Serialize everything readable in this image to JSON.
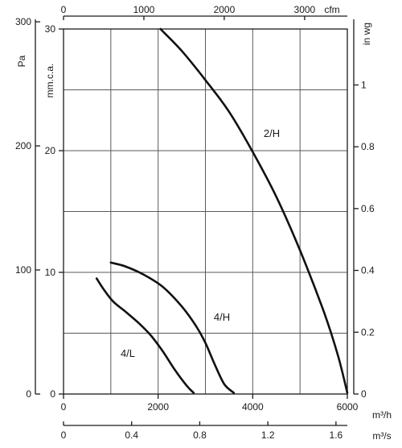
{
  "chart_data": {
    "type": "line",
    "axes": {
      "pa": {
        "label": "Pa",
        "ticks": [
          {
            "v": 0,
            "t": "0"
          },
          {
            "v": 100,
            "t": "100"
          },
          {
            "v": 200,
            "t": "200"
          },
          {
            "v": 300,
            "t": "300"
          }
        ]
      },
      "mmca": {
        "label": "mm.c.a.",
        "ticks": [
          {
            "v": 0,
            "t": "0"
          },
          {
            "v": 10,
            "t": "10"
          },
          {
            "v": 20,
            "t": "20"
          },
          {
            "v": 30,
            "t": "30"
          }
        ]
      },
      "inwg": {
        "label": "in wg",
        "ticks": [
          {
            "v": 0,
            "t": "0"
          },
          {
            "v": 0.2,
            "t": "0.2"
          },
          {
            "v": 0.4,
            "t": "0.4"
          },
          {
            "v": 0.6,
            "t": "0.6"
          },
          {
            "v": 0.8,
            "t": "0.8"
          },
          {
            "v": 1,
            "t": "1"
          }
        ]
      },
      "cfm": {
        "label": "cfm",
        "ticks": [
          {
            "v": 0,
            "t": "0"
          },
          {
            "v": 1000,
            "t": "1000"
          },
          {
            "v": 2000,
            "t": "2000"
          },
          {
            "v": 3000,
            "t": "3000"
          }
        ]
      },
      "m3h": {
        "label": "m³/h",
        "ticks": [
          {
            "v": 0,
            "t": "0"
          },
          {
            "v": 2000,
            "t": "2000"
          },
          {
            "v": 4000,
            "t": "4000"
          },
          {
            "v": 6000,
            "t": "6000"
          }
        ]
      },
      "m3s": {
        "label": "m³/s",
        "ticks": [
          {
            "v": 0,
            "t": "0"
          },
          {
            "v": 0.4,
            "t": "0.4"
          },
          {
            "v": 0.8,
            "t": "0.8"
          },
          {
            "v": 1.2,
            "t": "1.2"
          },
          {
            "v": 1.6,
            "t": "1.6"
          }
        ]
      }
    },
    "x_unit": "m3/h",
    "y_unit": "mm.c.a.",
    "xlim": [
      0,
      6000
    ],
    "ylim": [
      0,
      30
    ],
    "grid": true,
    "series": [
      {
        "name": "2/H",
        "x": [
          2050,
          2500,
          3000,
          3500,
          4000,
          4500,
          5000,
          5500,
          5800,
          6000
        ],
        "y": [
          30,
          28.2,
          25.8,
          23.2,
          19.9,
          16.2,
          11.8,
          6.8,
          3.2,
          0.1
        ]
      },
      {
        "name": "4/H",
        "x": [
          1000,
          1300,
          1700,
          2100,
          2500,
          2800,
          3000,
          3200,
          3400,
          3600
        ],
        "y": [
          10.8,
          10.5,
          9.8,
          8.8,
          7.2,
          5.6,
          4.2,
          2.4,
          0.8,
          0.1
        ]
      },
      {
        "name": "4/L",
        "x": [
          700,
          850,
          1050,
          1300,
          1600,
          1850,
          2100,
          2350,
          2600,
          2750
        ],
        "y": [
          9.5,
          8.6,
          7.6,
          6.8,
          5.8,
          4.8,
          3.5,
          2.0,
          0.7,
          0.1
        ]
      }
    ]
  }
}
